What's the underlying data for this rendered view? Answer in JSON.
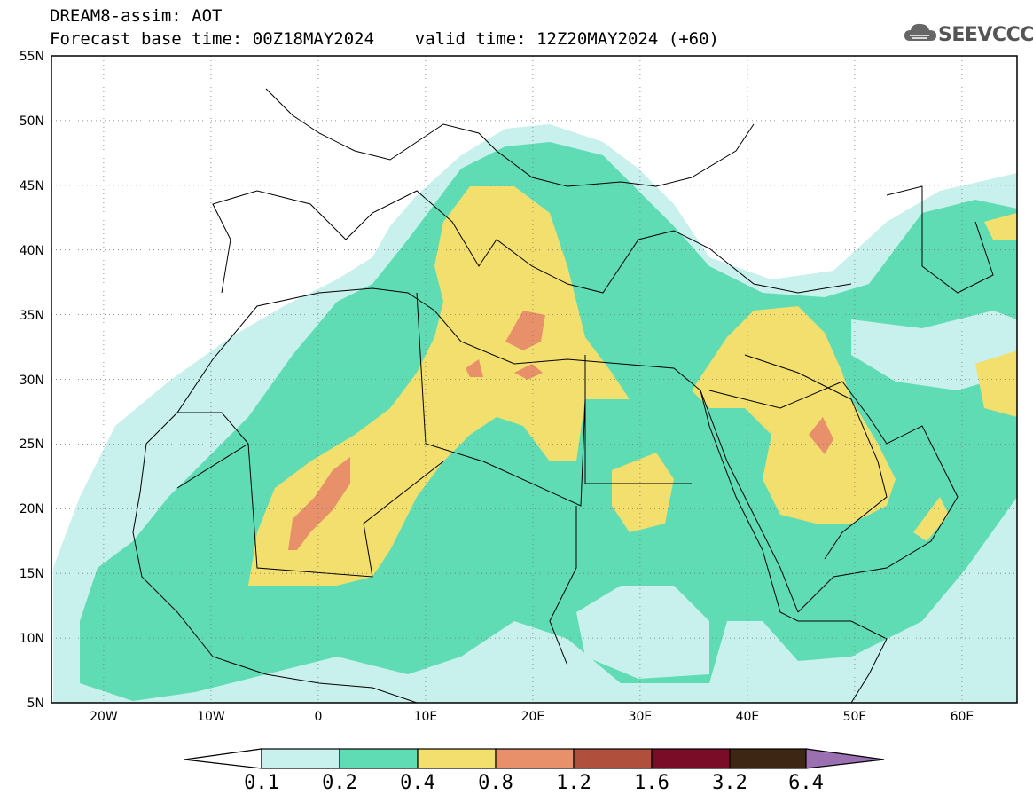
{
  "header": {
    "line1": "DREAM8-assim: AOT",
    "line2": "Forecast base time: 00Z18MAY2024    valid time: 12Z20MAY2024 (+60)"
  },
  "logo": {
    "text": "SEEVCCC",
    "icon": "cloud-icon"
  },
  "map": {
    "projection": "lat-lon",
    "lon_range": [
      -25,
      65
    ],
    "lat_range": [
      5,
      55
    ],
    "lat_labels": [
      "55N",
      "50N",
      "45N",
      "40N",
      "35N",
      "30N",
      "25N",
      "20N",
      "15N",
      "10N",
      "5N"
    ],
    "lon_labels": [
      "20W",
      "10W",
      "0",
      "10E",
      "20E",
      "30E",
      "40E",
      "50E",
      "60E"
    ],
    "grid": "dotted"
  },
  "colorbar": {
    "labels": [
      "0.1",
      "0.2",
      "0.4",
      "0.8",
      "1.2",
      "1.6",
      "3.2",
      "6.4"
    ],
    "colors": [
      "#c8f0ec",
      "#5fdcb4",
      "#f2df6e",
      "#e8906a",
      "#b0503c",
      "#7a0c28",
      "#3e2614",
      "#9a70b0"
    ],
    "under_color": "#ffffff",
    "over_color": "#9a70b0"
  }
}
